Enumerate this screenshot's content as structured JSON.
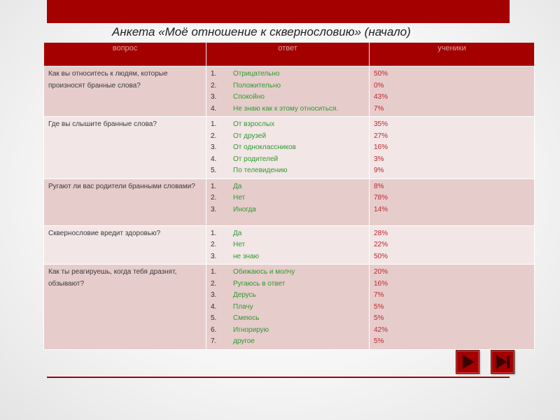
{
  "title": "Анкета «Моё отношение к сквернословию» (начало)",
  "table": {
    "headers": [
      "вопрос",
      "ответ",
      "ученики"
    ],
    "rows": [
      {
        "question": "Как вы относитесь к людям, которые произносят бранные слова?",
        "answers": [
          {
            "num": "1.",
            "text": "Отрицательно"
          },
          {
            "num": "2.",
            "text": "Положительно"
          },
          {
            "num": "3.",
            "text": "Спокойно"
          },
          {
            "num": "4.",
            "text": "Не знаю как к этому относиться."
          }
        ],
        "percents": [
          "50%",
          "0%",
          "43%",
          "7%"
        ]
      },
      {
        "question": "Где вы слышите бранные слова?",
        "answers": [
          {
            "num": "1.",
            "text": "От взрослых"
          },
          {
            "num": "2.",
            "text": "От друзей"
          },
          {
            "num": "3.",
            "text": "От одноклассников"
          },
          {
            "num": "4.",
            "text": "От родителей"
          },
          {
            "num": "5.",
            "text": "По телевидению"
          }
        ],
        "percents": [
          "35%",
          "27%",
          "16%",
          "3%",
          "9%"
        ]
      },
      {
        "question": "Ругают ли вас родители бранными словами?",
        "answers": [
          {
            "num": "1.",
            "text": "Да"
          },
          {
            "num": "2.",
            "text": "Нет"
          },
          {
            "num": "3.",
            "text": "Иногда"
          }
        ],
        "percents": [
          "8%",
          "78%",
          "14%"
        ]
      },
      {
        "question": "Сквернословие вредит здоровью?",
        "answers": [
          {
            "num": "1.",
            "text": "Да"
          },
          {
            "num": "2.",
            "text": "Нет"
          },
          {
            "num": "3.",
            "text": "не знаю"
          }
        ],
        "percents": [
          "28%",
          "22%",
          "50%"
        ]
      },
      {
        "question": "Как ты реагируешь, когда тебя дразнят, обзывают?",
        "answers": [
          {
            "num": "1.",
            "text": "Обижаюсь и молчу"
          },
          {
            "num": "2.",
            "text": "Ругаюсь в ответ"
          },
          {
            "num": "3.",
            "text": "Дерусь"
          },
          {
            "num": "4.",
            "text": "Плачу"
          },
          {
            "num": "5.",
            "text": "Смеюсь"
          },
          {
            "num": "6.",
            "text": "Игнорирую"
          },
          {
            "num": "7.",
            "text": "другое"
          }
        ],
        "percents": [
          "20%",
          "16%",
          "7%",
          "5%",
          "5%",
          "42%",
          "5%"
        ]
      }
    ]
  },
  "nav": {
    "next_icon": "play-arrow-icon",
    "last_icon": "skip-to-end-icon"
  },
  "colors": {
    "accent": "#a50000",
    "answer_text": "#2e9a2e",
    "percent_text": "#c0262b"
  }
}
